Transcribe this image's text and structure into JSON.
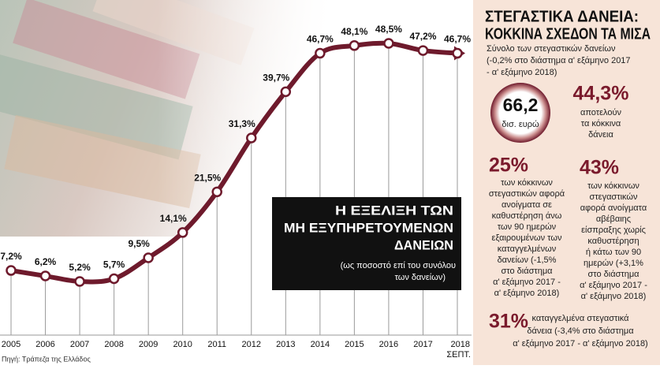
{
  "chart_data": {
    "type": "line",
    "title": [
      "Η ΕΞΕΛΙΞΗ ΤΩΝ",
      "ΜΗ ΕΞΥΠΗΡΕΤΟΥΜΕΝΩΝ",
      "ΔΑΝΕΙΩΝ"
    ],
    "subtitle": [
      "(ως ποσοστό επί του συνόλου",
      "των δανείων)"
    ],
    "categories": [
      "2005",
      "2006",
      "2007",
      "2008",
      "2009",
      "2010",
      "2011",
      "2012",
      "2013",
      "2014",
      "2015",
      "2016",
      "2017",
      "2018"
    ],
    "last_category_note": "ΣΕΠΤ.",
    "values": [
      7.2,
      6.2,
      5.2,
      5.7,
      9.5,
      14.1,
      21.5,
      31.3,
      39.7,
      46.7,
      48.1,
      48.5,
      47.2,
      46.7
    ],
    "value_labels": [
      "7,2%",
      "6,2%",
      "5,2%",
      "5,7%",
      "9,5%",
      "14,1%",
      "21,5%",
      "31,3%",
      "39,7%",
      "46,7%",
      "48,1%",
      "48,5%",
      "47,2%",
      "46,7%"
    ],
    "color": "#6e1a2c"
  },
  "panel": {
    "title": [
      "ΣΤΕΓΑΣΤΙΚΑ ΔΑΝΕΙΑ:",
      "ΚΟΚΚΙΝΑ ΣΧΕΔΟΝ ΤΑ ΜΙΣΑ"
    ],
    "subtitle": [
      "Σύνολο των στεγαστικών δανείων",
      "(-0,2% στο διάστημα α' εξάμηνο 2017",
      "- α' εξάμηνο 2018)"
    ],
    "total": "66,2",
    "total_unit": "δισ. ευρώ",
    "share": "44,3%",
    "share_text": [
      "αποτελούν",
      "τα κόκκινα",
      "δάνεια"
    ],
    "block1": {
      "value": "25%",
      "text": [
        "των κόκκινων",
        "στεγαστικών αφορά",
        "ανοίγματα σε",
        "καθυστέρηση άνω",
        "των 90 ημερών",
        "εξαιρουμένων των",
        "καταγγελμένων",
        "δανείων (-1,5%",
        "στο διάστημα",
        "α' εξάμηνο 2017 -",
        "α' εξάμηνο 2018)"
      ]
    },
    "block2": {
      "value": "43%",
      "text": [
        "των κόκκινων",
        "στεγαστικών",
        "αφορά ανοίγματα",
        "αβέβαιης",
        "είσπραξης χωρίς",
        "καθυστέρηση",
        "ή κάτω των 90",
        "ημερών (+3,1%",
        "στο διάστημα",
        "α' εξάμηνο 2017 -",
        "α' εξάμηνο 2018)"
      ]
    },
    "block3": {
      "value": "31%",
      "text": [
        "καταγγελμένα στεγαστικά",
        "δάνεια (-3,4% στο διάστημα",
        "α' εξάμηνο 2017 - α' εξάμηνο 2018)"
      ]
    }
  },
  "source": "Πηγή: Τράπεζα της Ελλάδος"
}
